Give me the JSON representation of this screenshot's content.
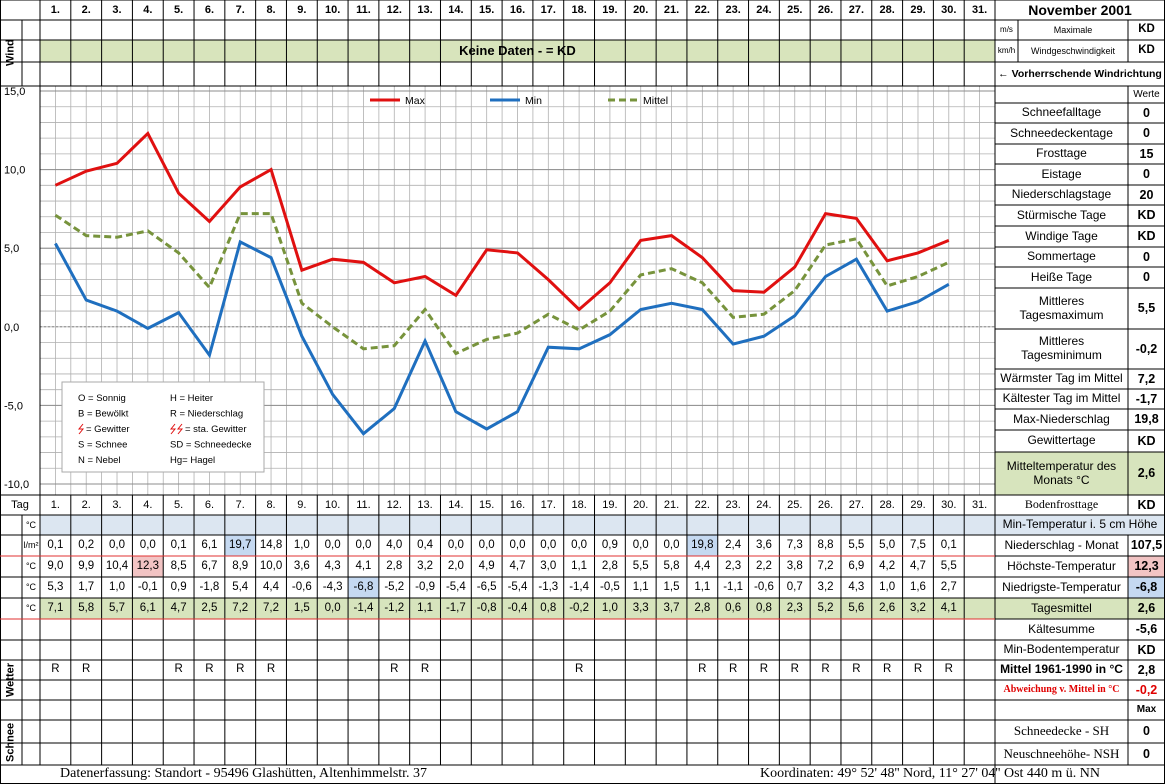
{
  "header": {
    "title": "November 2001"
  },
  "wind": {
    "row_label": "Wind",
    "unit_ms": "m/s",
    "unit_kmh": "km/h",
    "label_line1": "Maximale",
    "label_line2": "Windgeschwindigkeit",
    "value_ms": "KD",
    "value_kmh": "KD",
    "no_data": "Keine Daten -  = KD",
    "direction": "← Vorherrschende Windrichtung"
  },
  "chart_data": {
    "type": "line",
    "categories": [
      "1.",
      "2.",
      "3.",
      "4.",
      "5.",
      "6.",
      "7.",
      "8.",
      "9.",
      "10.",
      "11.",
      "12.",
      "13.",
      "14.",
      "15.",
      "16.",
      "17.",
      "18.",
      "19.",
      "20.",
      "21.",
      "22.",
      "23.",
      "24.",
      "25.",
      "26.",
      "27.",
      "28.",
      "29.",
      "30.",
      "31."
    ],
    "series": [
      {
        "name": "Max",
        "color": "#e01010",
        "dash": false,
        "values": [
          9.0,
          9.9,
          10.4,
          12.3,
          8.5,
          6.7,
          8.9,
          10.0,
          3.6,
          4.3,
          4.1,
          2.8,
          3.2,
          2.0,
          4.9,
          4.7,
          3.0,
          1.1,
          2.8,
          5.5,
          5.8,
          4.4,
          2.3,
          2.2,
          3.8,
          7.2,
          6.9,
          4.2,
          4.7,
          5.5,
          null
        ]
      },
      {
        "name": "Min",
        "color": "#1f6fbf",
        "dash": false,
        "values": [
          5.3,
          1.7,
          1.0,
          -0.1,
          0.9,
          -1.8,
          5.4,
          4.4,
          -0.6,
          -4.3,
          -6.8,
          -5.2,
          -0.9,
          -5.4,
          -6.5,
          -5.4,
          -1.3,
          -1.4,
          -0.5,
          1.1,
          1.5,
          1.1,
          -1.1,
          -0.6,
          0.7,
          3.2,
          4.3,
          1.0,
          1.6,
          2.7,
          null
        ]
      },
      {
        "name": "Mittel",
        "color": "#77933c",
        "dash": true,
        "values": [
          7.1,
          5.8,
          5.7,
          6.1,
          4.7,
          2.5,
          7.2,
          7.2,
          1.5,
          0.0,
          -1.4,
          -1.2,
          1.1,
          -1.7,
          -0.8,
          -0.4,
          0.8,
          -0.2,
          1.0,
          3.3,
          3.7,
          2.8,
          0.6,
          0.8,
          2.3,
          5.2,
          5.6,
          2.6,
          3.2,
          4.1,
          null
        ]
      }
    ],
    "ylim": [
      -10,
      15
    ],
    "yticks": [
      {
        "value": -10,
        "label": "-10,0"
      },
      {
        "value": -5,
        "label": "-5,0"
      },
      {
        "value": 0,
        "label": "0,0"
      },
      {
        "value": 5,
        "label": "5,0"
      },
      {
        "value": 10,
        "label": "10,0"
      },
      {
        "value": 15,
        "label": "15,0"
      }
    ],
    "grid": true,
    "legend": "top"
  },
  "weather_legend": [
    [
      "O = Sonnig",
      "H = Heiter"
    ],
    [
      "B = Bewölkt",
      "R = Niederschlag"
    ],
    [
      "= Gewitter",
      "= sta. Gewitter"
    ],
    [
      "S = Schnee",
      "SD = Schneedecke"
    ],
    [
      "N = Nebel",
      "Hg= Hagel"
    ]
  ],
  "table": {
    "tag": "Tag",
    "units": [
      "°C",
      "l/m²",
      "°C",
      "°C",
      "°C"
    ],
    "precip": [
      "0,1",
      "0,2",
      "0,0",
      "0,0",
      "0,1",
      "6,1",
      "19,7",
      "14,8",
      "1,0",
      "0,0",
      "0,0",
      "4,0",
      "0,4",
      "0,0",
      "0,0",
      "0,0",
      "0,0",
      "0,0",
      "0,9",
      "0,0",
      "0,0",
      "19,8",
      "2,4",
      "3,6",
      "7,3",
      "8,8",
      "5,5",
      "5,0",
      "7,5",
      "0,1"
    ],
    "max": [
      "9,0",
      "9,9",
      "10,4",
      "12,3",
      "8,5",
      "6,7",
      "8,9",
      "10,0",
      "3,6",
      "4,3",
      "4,1",
      "2,8",
      "3,2",
      "2,0",
      "4,9",
      "4,7",
      "3,0",
      "1,1",
      "2,8",
      "5,5",
      "5,8",
      "4,4",
      "2,3",
      "2,2",
      "3,8",
      "7,2",
      "6,9",
      "4,2",
      "4,7",
      "5,5"
    ],
    "min": [
      "5,3",
      "1,7",
      "1,0",
      "-0,1",
      "0,9",
      "-1,8",
      "5,4",
      "4,4",
      "-0,6",
      "-4,3",
      "-6,8",
      "-5,2",
      "-0,9",
      "-5,4",
      "-6,5",
      "-5,4",
      "-1,3",
      "-1,4",
      "-0,5",
      "1,1",
      "1,5",
      "1,1",
      "-1,1",
      "-0,6",
      "0,7",
      "3,2",
      "4,3",
      "1,0",
      "1,6",
      "2,7"
    ],
    "mean": [
      "7,1",
      "5,8",
      "5,7",
      "6,1",
      "4,7",
      "2,5",
      "7,2",
      "7,2",
      "1,5",
      "0,0",
      "-1,4",
      "-1,2",
      "1,1",
      "-1,7",
      "-0,8",
      "-0,4",
      "0,8",
      "-0,2",
      "1,0",
      "3,3",
      "3,7",
      "2,8",
      "0,6",
      "0,8",
      "2,3",
      "5,2",
      "5,6",
      "2,6",
      "3,2",
      "4,1"
    ],
    "wetter_label": "Wetter",
    "wetter": [
      "R",
      "R",
      null,
      null,
      "R",
      "R",
      "R",
      "R",
      null,
      null,
      null,
      "R",
      "R",
      null,
      null,
      null,
      null,
      "R",
      null,
      null,
      null,
      "R",
      "R",
      "R",
      "R",
      "R",
      "R",
      "R",
      "R",
      "R"
    ],
    "schnee_label": "Schnee"
  },
  "stats": {
    "header": "Werte",
    "items": [
      {
        "label": "Schneefalltage",
        "value": "0"
      },
      {
        "label": "Schneedeckentage",
        "value": "0"
      },
      {
        "label": "Frosttage",
        "value": "15"
      },
      {
        "label": "Eistage",
        "value": "0"
      },
      {
        "label": "Niederschlagstage",
        "value": "20"
      },
      {
        "label": "Stürmische Tage",
        "value": "KD"
      },
      {
        "label": "Windige Tage",
        "value": "KD"
      },
      {
        "label": "Sommertage",
        "value": "0"
      },
      {
        "label": "Heiße Tage",
        "value": "0"
      },
      {
        "label": "Mittleres Tagesmaximum",
        "value": "5,5"
      },
      {
        "label": "Mittleres Tagesminimum",
        "value": "-0,2"
      },
      {
        "label": "Wärmster Tag im Mittel",
        "value": "7,2"
      },
      {
        "label": "Kältester Tag im Mittel",
        "value": "-1,7"
      },
      {
        "label": "Max-Niederschlag",
        "value": "19,8"
      },
      {
        "label": "Gewittertage",
        "value": "KD"
      },
      {
        "label": "Mitteltemperatur des Monats °C",
        "value": "2,6"
      }
    ]
  },
  "summary": {
    "items": [
      {
        "label": "Bodenfrosttage",
        "value": "KD"
      },
      {
        "label": "Min-Temperatur i. 5 cm Höhe"
      },
      {
        "label": "Niederschlag - Monat",
        "value": "107,5"
      },
      {
        "label": "Höchste-Temperatur",
        "value": "12,3"
      },
      {
        "label": "Niedrigste-Temperatur",
        "value": "-6,8"
      },
      {
        "label": "Tagesmittel",
        "value": "2,6"
      },
      {
        "label": "Kältesumme",
        "value": "-5,6"
      },
      {
        "label": "Min-Bodentemperatur",
        "value": "KD"
      },
      {
        "label": "Mittel 1961-1990 in °C",
        "value": "2,8"
      },
      {
        "label": "Abweichung v. Mittel in °C",
        "value": "-0,2"
      }
    ],
    "max_header": "Max",
    "snow": [
      {
        "label": "Schneedecke -  SH",
        "value": "0"
      },
      {
        "label": "Neuschneehöhe- NSH",
        "value": "0"
      }
    ]
  },
  "footer": {
    "left": "Datenerfassung:  Standort -  95496  Glashütten, Altenhimmelstr. 37",
    "right": "Koordinaten:  49° 52' 48'' Nord,  11° 27' 04'' Ost   440 m ü. NN"
  }
}
